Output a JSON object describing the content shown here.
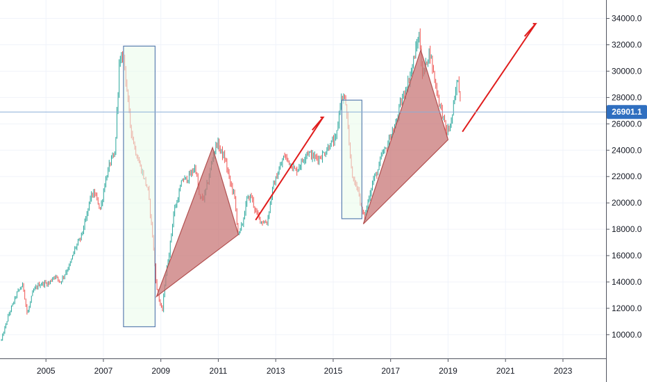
{
  "chart_data": {
    "type": "line",
    "title": "",
    "xlabel": "",
    "ylabel": "",
    "xlim": [
      2003.4,
      2024.5
    ],
    "ylim": [
      8200,
      35400
    ],
    "x_ticks": [
      "2005",
      "2007",
      "2009",
      "2011",
      "2013",
      "2015",
      "2017",
      "2019",
      "2021",
      "2023"
    ],
    "y_ticks": [
      "10000.0",
      "12000.0",
      "14000.0",
      "16000.0",
      "18000.0",
      "20000.0",
      "22000.0",
      "24000.0",
      "26000.0",
      "28000.0",
      "30000.0",
      "32000.0",
      "34000.0"
    ],
    "last_price": "26901.1",
    "last_price_value": 26901.1,
    "series": [
      {
        "x": [
          2003.45,
          2003.7,
          2004.0,
          2004.2,
          2004.35,
          2004.55,
          2004.75,
          2004.95,
          2005.1,
          2005.3,
          2005.5,
          2005.7,
          2005.85,
          2006.0,
          2006.2,
          2006.4,
          2006.55,
          2006.7,
          2006.9,
          2007.05,
          2007.25,
          2007.4,
          2007.55,
          2007.7,
          2007.75,
          2007.85,
          2007.95,
          2008.1,
          2008.25,
          2008.4,
          2008.55,
          2008.7,
          2008.85,
          2008.95,
          2009.05,
          2009.15,
          2009.3,
          2009.45,
          2009.6,
          2009.75,
          2009.9,
          2010.05,
          2010.2,
          2010.35,
          2010.5,
          2010.65,
          2010.8,
          2010.95,
          2011.1,
          2011.25,
          2011.4,
          2011.55,
          2011.7,
          2011.85,
          2012.0,
          2012.15,
          2012.3,
          2012.5,
          2012.7,
          2012.9,
          2013.1,
          2013.3,
          2013.5,
          2013.7,
          2013.9,
          2014.1,
          2014.3,
          2014.5,
          2014.7,
          2014.9,
          2015.1,
          2015.25,
          2015.35,
          2015.45,
          2015.55,
          2015.7,
          2015.85,
          2016.0,
          2016.1,
          2016.25,
          2016.4,
          2016.55,
          2016.7,
          2016.85,
          2017.0,
          2017.15,
          2017.3,
          2017.45,
          2017.6,
          2017.75,
          2017.9,
          2018.0,
          2018.1,
          2018.2,
          2018.35,
          2018.5,
          2018.65,
          2018.8,
          2018.95,
          2019.1,
          2019.25,
          2019.35,
          2019.45
        ],
        "values": [
          9600,
          11500,
          13200,
          13800,
          11500,
          13300,
          13800,
          13900,
          13900,
          14500,
          14000,
          14800,
          15400,
          16500,
          17300,
          18800,
          20500,
          20700,
          19500,
          21500,
          23200,
          23600,
          30500,
          31200,
          30200,
          27800,
          25700,
          24100,
          23000,
          22000,
          21000,
          17800,
          13500,
          12600,
          11700,
          14200,
          16400,
          19300,
          20400,
          21800,
          21800,
          22200,
          22800,
          20300,
          20400,
          21700,
          23400,
          24600,
          23900,
          23200,
          21600,
          20700,
          17500,
          18500,
          20300,
          20500,
          19300,
          18600,
          18500,
          21200,
          22400,
          23600,
          23000,
          22400,
          23100,
          23900,
          23500,
          23400,
          23800,
          24500,
          24800,
          27700,
          28100,
          27400,
          24300,
          21600,
          21300,
          19300,
          18900,
          20500,
          21800,
          22400,
          23700,
          24100,
          25200,
          25700,
          27200,
          28200,
          29100,
          30300,
          31900,
          32800,
          29700,
          30200,
          31600,
          29800,
          28000,
          26800,
          25300,
          26000,
          28200,
          29600,
          26901
        ]
      }
    ],
    "annotations": {
      "rectangles": [
        {
          "x0": 2007.7,
          "x1": 2008.8,
          "y0": 10600,
          "y1": 31900
        },
        {
          "x0": 2015.3,
          "x1": 2016.0,
          "y0": 18800,
          "y1": 27800
        }
      ],
      "triangles": [
        [
          [
            2008.85,
            12900
          ],
          [
            2010.8,
            24200
          ],
          [
            2011.7,
            17600
          ]
        ],
        [
          [
            2016.05,
            18400
          ],
          [
            2018.05,
            31600
          ],
          [
            2019.0,
            24800
          ]
        ]
      ],
      "arrows": [
        [
          [
            2012.3,
            18700
          ],
          [
            2014.65,
            26500
          ]
        ],
        [
          [
            2019.5,
            25400
          ],
          [
            2022.05,
            33600
          ]
        ]
      ]
    },
    "colors": {
      "up": "#26a69a",
      "down": "#ef5350",
      "rectangle_fill": "#eafbe9",
      "rectangle_stroke": "#5b7fb0",
      "triangle_fill": "#c87777",
      "triangle_stroke": "#b24f4f",
      "arrow": "#e01c1c",
      "price_line": "#89aed8",
      "price_label_bg": "#2f6fc0"
    }
  }
}
